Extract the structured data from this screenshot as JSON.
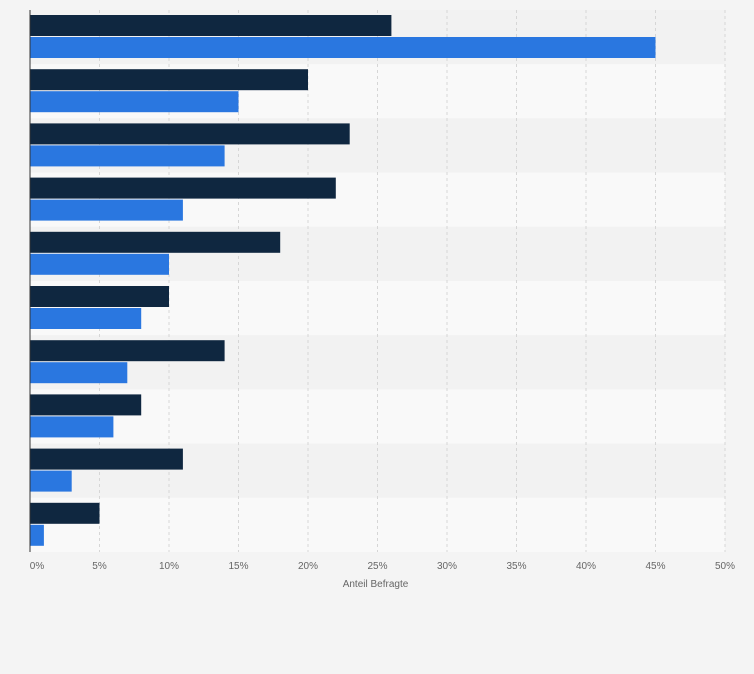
{
  "chart_data": {
    "type": "bar",
    "orientation": "horizontal",
    "categories": [
      "",
      "",
      "",
      "",
      "",
      "",
      "",
      "",
      "",
      ""
    ],
    "series": [
      {
        "values": [
          26,
          20,
          23,
          22,
          18,
          10,
          14,
          8,
          11,
          5
        ]
      },
      {
        "values": [
          45,
          15,
          14,
          11,
          10,
          8,
          7,
          6,
          3,
          1
        ]
      }
    ],
    "xlabel": "Anteil Befragte",
    "xlim": [
      0,
      50
    ],
    "xticks": [
      "0%",
      "5%",
      "10%",
      "15%",
      "20%",
      "25%",
      "30%",
      "35%",
      "40%",
      "45%",
      "50%"
    ],
    "grid": "vertical-dashed",
    "legend": "none"
  },
  "colors": {
    "series_1": "#0f2740",
    "series_2": "#2a77e0",
    "band_light": "#f9f9f9",
    "band_dark": "#f2f2f2",
    "grid": "#d6d6d6",
    "axis": "#333333",
    "tick_text": "#666666"
  }
}
